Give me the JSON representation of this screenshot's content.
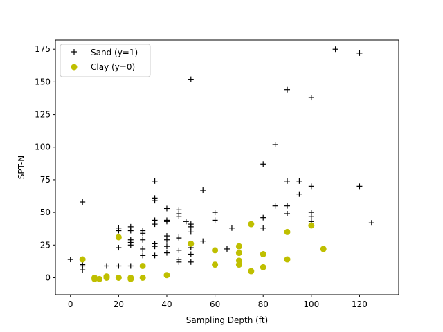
{
  "chart_data": {
    "type": "scatter",
    "title": "",
    "xlabel": "Sampling Depth (ft)",
    "ylabel": "SPT-N",
    "xlim": [
      -6.25,
      136.25
    ],
    "ylim": [
      -13,
      182
    ],
    "xticks": [
      0,
      20,
      40,
      60,
      80,
      100,
      120
    ],
    "yticks": [
      0,
      25,
      50,
      75,
      100,
      125,
      150,
      175
    ],
    "grid": false,
    "legend_position": "top-left",
    "series": [
      {
        "name": "Sand (y=1)",
        "marker": "plus",
        "color": "#000000",
        "points": [
          [
            0,
            14
          ],
          [
            5,
            58
          ],
          [
            5,
            10
          ],
          [
            5,
            9
          ],
          [
            5,
            6
          ],
          [
            15,
            9
          ],
          [
            20,
            38
          ],
          [
            20,
            36
          ],
          [
            20,
            23
          ],
          [
            20,
            9
          ],
          [
            25,
            39
          ],
          [
            25,
            36
          ],
          [
            25,
            29
          ],
          [
            25,
            27
          ],
          [
            25,
            25
          ],
          [
            25,
            9
          ],
          [
            30,
            36
          ],
          [
            30,
            34
          ],
          [
            30,
            29
          ],
          [
            30,
            22
          ],
          [
            30,
            17
          ],
          [
            35,
            74
          ],
          [
            35,
            61
          ],
          [
            35,
            59
          ],
          [
            35,
            44
          ],
          [
            35,
            41
          ],
          [
            35,
            26
          ],
          [
            35,
            24
          ],
          [
            35,
            17
          ],
          [
            40,
            53
          ],
          [
            40,
            44
          ],
          [
            40,
            43
          ],
          [
            40,
            32
          ],
          [
            40,
            29
          ],
          [
            40,
            24
          ],
          [
            40,
            19
          ],
          [
            45,
            52
          ],
          [
            45,
            49
          ],
          [
            45,
            47
          ],
          [
            45,
            31
          ],
          [
            45,
            30
          ],
          [
            45,
            21
          ],
          [
            45,
            14
          ],
          [
            45,
            12
          ],
          [
            48,
            43
          ],
          [
            50,
            152
          ],
          [
            50,
            41
          ],
          [
            50,
            39
          ],
          [
            50,
            35
          ],
          [
            50,
            23
          ],
          [
            50,
            18
          ],
          [
            50,
            12
          ],
          [
            55,
            67
          ],
          [
            55,
            28
          ],
          [
            60,
            50
          ],
          [
            60,
            44
          ],
          [
            65,
            22
          ],
          [
            67,
            38
          ],
          [
            80,
            87
          ],
          [
            80,
            46
          ],
          [
            80,
            38
          ],
          [
            85,
            102
          ],
          [
            85,
            55
          ],
          [
            90,
            144
          ],
          [
            90,
            74
          ],
          [
            90,
            55
          ],
          [
            90,
            49
          ],
          [
            95,
            74
          ],
          [
            95,
            64
          ],
          [
            100,
            138
          ],
          [
            100,
            70
          ],
          [
            100,
            50
          ],
          [
            100,
            47
          ],
          [
            100,
            43
          ],
          [
            110,
            175
          ],
          [
            120,
            172
          ],
          [
            120,
            70
          ],
          [
            125,
            42
          ]
        ]
      },
      {
        "name": "Clay (y=0)",
        "marker": "circle",
        "color": "#bfbf00",
        "points": [
          [
            5,
            14
          ],
          [
            10,
            0
          ],
          [
            10,
            -1
          ],
          [
            12,
            -1
          ],
          [
            15,
            1
          ],
          [
            15,
            0
          ],
          [
            20,
            31
          ],
          [
            20,
            0
          ],
          [
            25,
            0
          ],
          [
            25,
            -1
          ],
          [
            30,
            9
          ],
          [
            30,
            0
          ],
          [
            40,
            2
          ],
          [
            50,
            26
          ],
          [
            60,
            21
          ],
          [
            60,
            10
          ],
          [
            70,
            24
          ],
          [
            70,
            19
          ],
          [
            70,
            13
          ],
          [
            70,
            10
          ],
          [
            75,
            41
          ],
          [
            75,
            5
          ],
          [
            80,
            18
          ],
          [
            80,
            8
          ],
          [
            90,
            35
          ],
          [
            90,
            14
          ],
          [
            100,
            40
          ],
          [
            105,
            22
          ]
        ]
      }
    ]
  }
}
